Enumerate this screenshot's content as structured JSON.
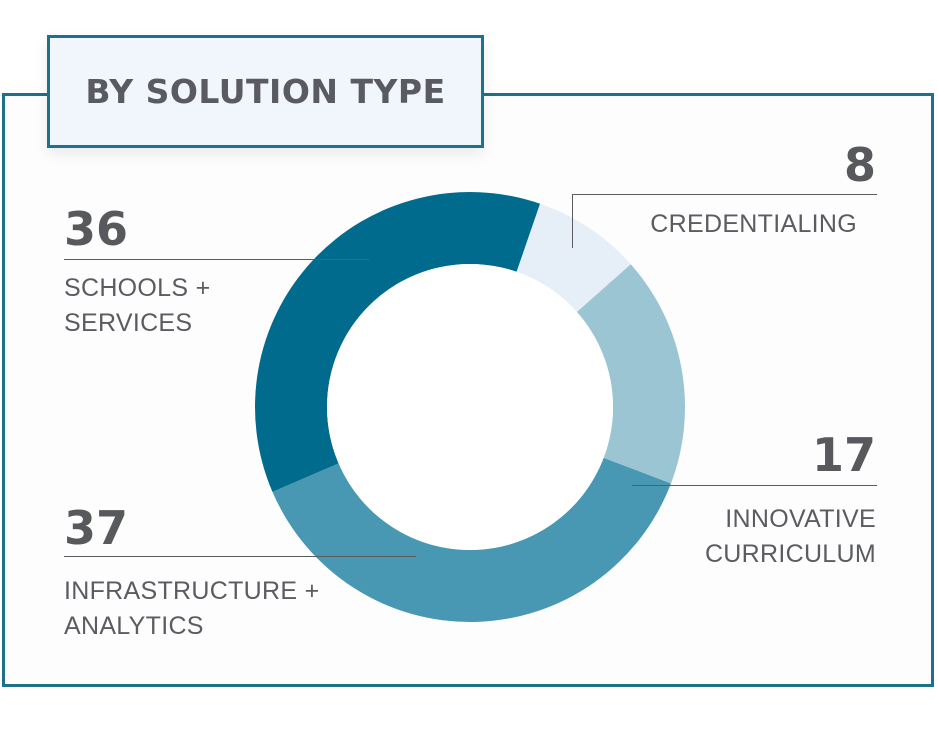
{
  "title": "BY SOLUTION TYPE",
  "chart_data": {
    "type": "pie",
    "title": "BY SOLUTION TYPE",
    "donut": true,
    "slices": [
      {
        "label": "CREDENTIALING",
        "label_lines": [
          "CREDENTIALING"
        ],
        "value": 8,
        "value_text": "8",
        "color": "#e6eef8"
      },
      {
        "label": "INNOVATIVE CURRICULUM",
        "label_lines": [
          "INNOVATIVE",
          "CURRICULUM"
        ],
        "value": 17,
        "value_text": "17",
        "color": "#9bc5d3"
      },
      {
        "label": "INFRASTRUCTURE + ANALYTICS",
        "label_lines": [
          "INFRASTRUCTURE +",
          "ANALYTICS"
        ],
        "value": 37,
        "value_text": "37",
        "color": "#4898b4"
      },
      {
        "label": "SCHOOLS + SERVICES",
        "label_lines": [
          "SCHOOLS +",
          "SERVICES"
        ],
        "value": 36,
        "value_text": "36",
        "color": "#006b8d"
      }
    ]
  }
}
